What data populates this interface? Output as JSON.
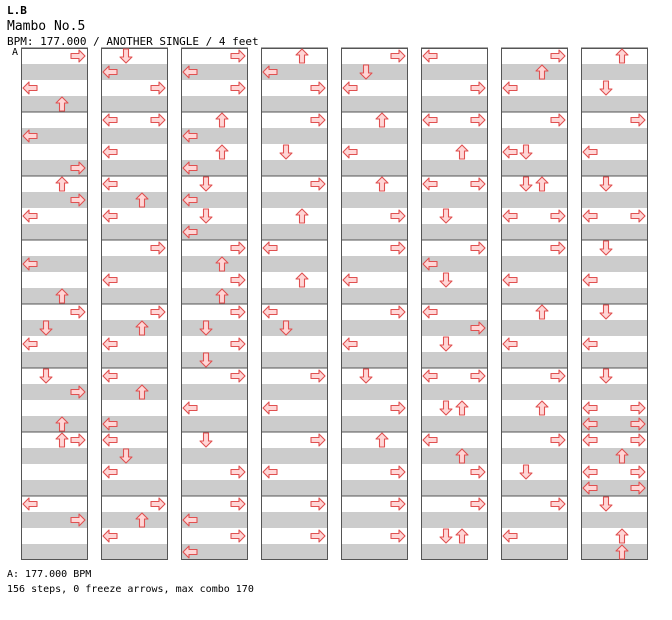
{
  "header": {
    "artist": "L.B",
    "title": "Mambo No.5",
    "info": "BPM: 177.000 / ANOTHER SINGLE / 4 feet",
    "section_marker": "A"
  },
  "footer": {
    "bpm_line": "A: 177.000 BPM",
    "stats_line": "156 steps, 0 freeze arrows, max combo 170"
  },
  "colors": {
    "arrow_fill": "#ffd6d6",
    "arrow_stroke": "#e05050",
    "stripe": "#cccccc",
    "border": "#555555"
  },
  "chart_data": {
    "type": "table",
    "lanes": [
      "left",
      "down",
      "up",
      "right"
    ],
    "measures_per_column": 8,
    "rows_per_measure": 4,
    "columns": [
      [
        [
          [
            0,
            3
          ],
          [
            2,
            0
          ],
          [
            3,
            2
          ]
        ],
        [
          [
            1,
            0
          ],
          [
            3,
            3
          ]
        ],
        [
          [
            0,
            2
          ],
          [
            1,
            3
          ],
          [
            2,
            0
          ]
        ],
        [
          [
            1,
            0
          ],
          [
            3,
            2
          ]
        ],
        [
          [
            0,
            3
          ],
          [
            1,
            1
          ],
          [
            2,
            0
          ]
        ],
        [
          [
            0,
            1
          ],
          [
            1,
            3
          ],
          [
            3,
            2
          ]
        ],
        [
          [
            0,
            2
          ],
          [
            0,
            3
          ]
        ],
        [
          [
            0,
            0
          ],
          [
            1,
            3
          ]
        ]
      ],
      [
        [
          [
            0,
            1
          ],
          [
            1,
            0
          ],
          [
            2,
            3
          ]
        ],
        [
          [
            0,
            0
          ],
          [
            0,
            3
          ],
          [
            2,
            0
          ]
        ],
        [
          [
            0,
            0
          ],
          [
            1,
            2
          ],
          [
            2,
            0
          ]
        ],
        [
          [
            0,
            3
          ],
          [
            2,
            0
          ]
        ],
        [
          [
            0,
            3
          ],
          [
            1,
            2
          ],
          [
            2,
            0
          ]
        ],
        [
          [
            0,
            0
          ],
          [
            1,
            2
          ],
          [
            3,
            0
          ]
        ],
        [
          [
            0,
            0
          ],
          [
            1,
            1
          ],
          [
            2,
            0
          ]
        ],
        [
          [
            0,
            3
          ],
          [
            1,
            2
          ],
          [
            2,
            0
          ]
        ]
      ],
      [
        [
          [
            0,
            3
          ],
          [
            1,
            0
          ],
          [
            2,
            3
          ]
        ],
        [
          [
            0,
            2
          ],
          [
            1,
            0
          ],
          [
            2,
            2
          ],
          [
            3,
            0
          ]
        ],
        [
          [
            0,
            1
          ],
          [
            1,
            0
          ],
          [
            2,
            1
          ],
          [
            3,
            0
          ]
        ],
        [
          [
            0,
            3
          ],
          [
            1,
            2
          ],
          [
            2,
            3
          ],
          [
            3,
            2
          ]
        ],
        [
          [
            0,
            3
          ],
          [
            1,
            1
          ],
          [
            2,
            3
          ],
          [
            3,
            1
          ]
        ],
        [
          [
            0,
            3
          ],
          [
            2,
            0
          ]
        ],
        [
          [
            0,
            1
          ],
          [
            2,
            3
          ]
        ],
        [
          [
            0,
            3
          ],
          [
            1,
            0
          ],
          [
            2,
            3
          ],
          [
            3,
            0
          ]
        ]
      ],
      [
        [
          [
            0,
            2
          ],
          [
            1,
            0
          ],
          [
            2,
            3
          ]
        ],
        [
          [
            0,
            3
          ],
          [
            2,
            1
          ]
        ],
        [
          [
            0,
            3
          ],
          [
            2,
            2
          ]
        ],
        [
          [
            0,
            0
          ],
          [
            2,
            2
          ]
        ],
        [
          [
            0,
            0
          ],
          [
            1,
            1
          ]
        ],
        [
          [
            0,
            3
          ],
          [
            2,
            0
          ]
        ],
        [
          [
            0,
            3
          ],
          [
            2,
            0
          ]
        ],
        [
          [
            0,
            3
          ],
          [
            2,
            3
          ]
        ]
      ],
      [
        [
          [
            0,
            3
          ],
          [
            1,
            1
          ],
          [
            2,
            0
          ]
        ],
        [
          [
            0,
            2
          ],
          [
            2,
            0
          ]
        ],
        [
          [
            0,
            2
          ],
          [
            2,
            3
          ]
        ],
        [
          [
            0,
            3
          ],
          [
            2,
            0
          ]
        ],
        [
          [
            0,
            3
          ],
          [
            2,
            0
          ]
        ],
        [
          [
            0,
            1
          ],
          [
            2,
            3
          ]
        ],
        [
          [
            0,
            2
          ],
          [
            2,
            3
          ]
        ],
        [
          [
            0,
            3
          ],
          [
            2,
            3
          ]
        ]
      ],
      [
        [
          [
            0,
            0
          ],
          [
            2,
            3
          ]
        ],
        [
          [
            0,
            0
          ],
          [
            0,
            3
          ],
          [
            2,
            2
          ]
        ],
        [
          [
            0,
            0
          ],
          [
            0,
            3
          ],
          [
            2,
            1
          ]
        ],
        [
          [
            0,
            3
          ],
          [
            1,
            0
          ],
          [
            2,
            1
          ]
        ],
        [
          [
            0,
            0
          ],
          [
            1,
            3
          ],
          [
            2,
            1
          ]
        ],
        [
          [
            0,
            0
          ],
          [
            0,
            3
          ],
          [
            2,
            1
          ],
          [
            2,
            2
          ]
        ],
        [
          [
            0,
            0
          ],
          [
            1,
            2
          ],
          [
            2,
            3
          ]
        ],
        [
          [
            0,
            3
          ],
          [
            2,
            1
          ],
          [
            2,
            2
          ]
        ]
      ],
      [
        [
          [
            0,
            3
          ],
          [
            1,
            2
          ],
          [
            2,
            0
          ]
        ],
        [
          [
            0,
            3
          ],
          [
            2,
            0
          ],
          [
            2,
            1
          ]
        ],
        [
          [
            0,
            1
          ],
          [
            0,
            2
          ],
          [
            2,
            0
          ],
          [
            2,
            3
          ]
        ],
        [
          [
            0,
            3
          ],
          [
            2,
            0
          ]
        ],
        [
          [
            0,
            2
          ],
          [
            2,
            0
          ]
        ],
        [
          [
            0,
            3
          ],
          [
            2,
            2
          ]
        ],
        [
          [
            0,
            3
          ],
          [
            2,
            1
          ]
        ],
        [
          [
            0,
            3
          ],
          [
            2,
            0
          ]
        ]
      ],
      [
        [
          [
            0,
            2
          ],
          [
            2,
            1
          ]
        ],
        [
          [
            0,
            3
          ],
          [
            2,
            0
          ]
        ],
        [
          [
            0,
            1
          ],
          [
            2,
            0
          ],
          [
            2,
            3
          ]
        ],
        [
          [
            0,
            1
          ],
          [
            2,
            0
          ]
        ],
        [
          [
            0,
            1
          ],
          [
            2,
            0
          ]
        ],
        [
          [
            0,
            1
          ],
          [
            2,
            0
          ],
          [
            2,
            3
          ],
          [
            3,
            0
          ],
          [
            3,
            3
          ]
        ],
        [
          [
            0,
            0
          ],
          [
            0,
            3
          ],
          [
            1,
            2
          ],
          [
            2,
            0
          ],
          [
            2,
            3
          ],
          [
            3,
            0
          ],
          [
            3,
            3
          ]
        ],
        [
          [
            0,
            1
          ],
          [
            2,
            2
          ],
          [
            3,
            2
          ]
        ]
      ]
    ]
  }
}
